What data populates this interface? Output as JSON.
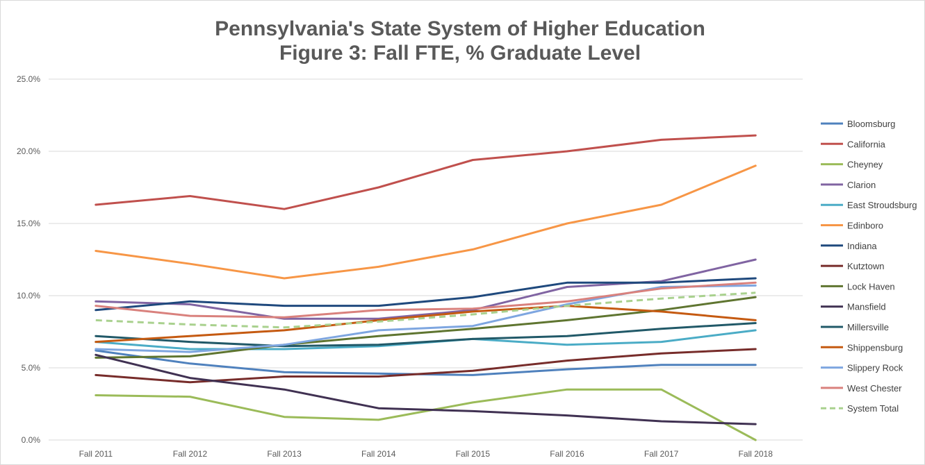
{
  "chart_data": {
    "type": "line",
    "title_lines": [
      "Pennsylvania's State System of Higher Education",
      "Figure 3: Fall FTE, % Graduate Level"
    ],
    "xlabel": "",
    "ylabel": "",
    "categories": [
      "Fall 2011",
      "Fall 2012",
      "Fall 2013",
      "Fall 2014",
      "Fall 2015",
      "Fall 2016",
      "Fall 2017",
      "Fall 2018"
    ],
    "ylim": [
      0,
      25
    ],
    "yticks": [
      0,
      5,
      10,
      15,
      20,
      25
    ],
    "ytick_labels": [
      "0.0%",
      "5.0%",
      "10.0%",
      "15.0%",
      "20.0%",
      "25.0%"
    ],
    "grid": "horizontal",
    "legend_position": "right",
    "series": [
      {
        "name": "Bloomsburg",
        "color": "#4f81bd",
        "dashed": false,
        "values": [
          6.2,
          5.3,
          4.7,
          4.6,
          4.5,
          4.9,
          5.2,
          5.2
        ]
      },
      {
        "name": "California",
        "color": "#c0504d",
        "dashed": false,
        "values": [
          16.3,
          16.9,
          16.0,
          17.5,
          19.4,
          20.0,
          20.8,
          21.1
        ]
      },
      {
        "name": "Cheyney",
        "color": "#9bbb59",
        "dashed": false,
        "values": [
          3.1,
          3.0,
          1.6,
          1.4,
          2.6,
          3.5,
          3.5,
          0.0
        ]
      },
      {
        "name": "Clarion",
        "color": "#8064a2",
        "dashed": false,
        "values": [
          9.6,
          9.4,
          8.4,
          8.4,
          9.0,
          10.6,
          11.0,
          12.5
        ]
      },
      {
        "name": "East Stroudsburg",
        "color": "#4bacc6",
        "dashed": false,
        "values": [
          6.8,
          6.3,
          6.3,
          6.5,
          7.0,
          6.6,
          6.8,
          7.6
        ]
      },
      {
        "name": "Edinboro",
        "color": "#f79646",
        "dashed": false,
        "values": [
          13.1,
          12.2,
          11.2,
          12.0,
          13.2,
          15.0,
          16.3,
          19.0
        ]
      },
      {
        "name": "Indiana",
        "color": "#1f497d",
        "dashed": false,
        "values": [
          9.0,
          9.6,
          9.3,
          9.3,
          9.9,
          10.9,
          10.9,
          11.2
        ]
      },
      {
        "name": "Kutztown",
        "color": "#772c2a",
        "dashed": false,
        "values": [
          4.5,
          4.0,
          4.4,
          4.4,
          4.8,
          5.5,
          6.0,
          6.3
        ]
      },
      {
        "name": "Lock Haven",
        "color": "#5f7530",
        "dashed": false,
        "values": [
          5.7,
          5.8,
          6.6,
          7.2,
          7.7,
          8.3,
          9.0,
          9.9
        ]
      },
      {
        "name": "Mansfield",
        "color": "#403152",
        "dashed": false,
        "values": [
          5.9,
          4.3,
          3.5,
          2.2,
          2.0,
          1.7,
          1.3,
          1.1
        ]
      },
      {
        "name": "Millersville",
        "color": "#215968",
        "dashed": false,
        "values": [
          7.2,
          6.8,
          6.5,
          6.6,
          7.0,
          7.2,
          7.7,
          8.1
        ]
      },
      {
        "name": "Shippensburg",
        "color": "#c55a11",
        "dashed": false,
        "values": [
          6.8,
          7.2,
          7.6,
          8.3,
          8.9,
          9.3,
          8.9,
          8.3
        ]
      },
      {
        "name": "Slippery Rock",
        "color": "#7ea6e0",
        "dashed": false,
        "values": [
          6.3,
          6.1,
          6.6,
          7.6,
          7.9,
          9.4,
          10.6,
          10.7
        ]
      },
      {
        "name": "West Chester",
        "color": "#d9817d",
        "dashed": false,
        "values": [
          9.3,
          8.6,
          8.5,
          9.0,
          9.1,
          9.6,
          10.5,
          10.9
        ]
      },
      {
        "name": "System Total",
        "color": "#a9d18e",
        "dashed": true,
        "values": [
          8.3,
          8.0,
          7.8,
          8.2,
          8.7,
          9.3,
          9.8,
          10.2
        ]
      }
    ]
  }
}
